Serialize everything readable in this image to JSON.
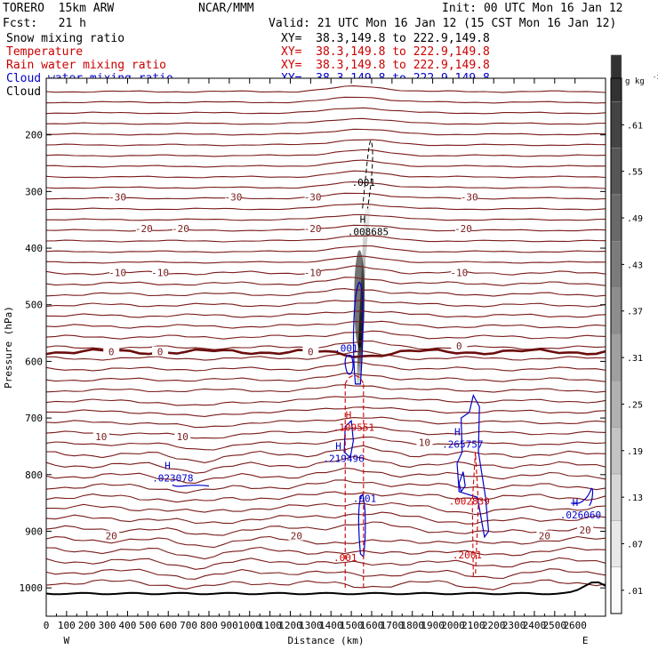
{
  "header": {
    "model": "TORERO  15km ARW",
    "center": "NCAR/MMM",
    "init": "Init: 00 UTC Mon 16 Jan 12",
    "fcst": "Fcst:   21 h",
    "valid": "Valid: 21 UTC Mon 16 Jan 12 (15 CST Mon 16 Jan 12)"
  },
  "fields": [
    {
      "name": "Snow mixing ratio",
      "xy": "XY=  38.3,149.8 to 222.9,149.8",
      "color": "#000000",
      "xy_color": "#000000"
    },
    {
      "name": "Temperature",
      "xy": "XY=  38.3,149.8 to 222.9,149.8",
      "color": "#cc0000",
      "xy_color": "#cc0000"
    },
    {
      "name": "Rain water mixing ratio",
      "xy": "XY=  38.3,149.8 to 222.9,149.8",
      "color": "#cc0000",
      "xy_color": "#cc0000"
    },
    {
      "name": "Cloud water mixing ratio",
      "xy": "XY=  38.3,149.8 to 222.9,149.8",
      "color": "#0000cc",
      "xy_color": "#0000cc"
    },
    {
      "name": "Cloud ice mixing ratio",
      "xy": "XY=  38.3,149.8 to 222.9,149.8",
      "color": "#000000",
      "xy_color": "#000000"
    }
  ],
  "chart_data": {
    "type": "contour cross-section",
    "xlabel": "Distance (km)",
    "ylabel": "Pressure (hPa)",
    "xlim": [
      0,
      2750
    ],
    "ylim": [
      1050,
      100
    ],
    "x_ticks": [
      0,
      100,
      200,
      300,
      400,
      500,
      600,
      700,
      800,
      900,
      1000,
      1100,
      1200,
      1300,
      1400,
      1500,
      1600,
      1700,
      1800,
      1900,
      2000,
      2100,
      2200,
      2300,
      2400,
      2500,
      2600
    ],
    "y_ticks": [
      200,
      300,
      400,
      500,
      600,
      700,
      800,
      900,
      1000
    ],
    "x_end_labels": {
      "left": "W",
      "right": "E"
    },
    "colorbar": {
      "unit": "g kg",
      "unit_exponent": "-1",
      "ticks": [
        ".01",
        ".07",
        ".13",
        ".19",
        ".25",
        ".31",
        ".37",
        ".43",
        ".49",
        ".55",
        ".61"
      ]
    },
    "temperature_contour_labels": [
      {
        "value": "-30",
        "x": [
          350,
          920,
          1310,
          2080
        ],
        "p": [
          310,
          310,
          310,
          310
        ]
      },
      {
        "value": "-20",
        "x": [
          480,
          660,
          1310,
          2050
        ],
        "p": [
          365,
          365,
          365,
          365
        ]
      },
      {
        "value": "-10",
        "x": [
          350,
          560,
          1310,
          2030
        ],
        "p": [
          443,
          443,
          443,
          443
        ]
      },
      {
        "value": "0",
        "x": [
          320,
          560,
          1300,
          2030
        ],
        "p": [
          583,
          583,
          583,
          573
        ]
      },
      {
        "value": "10",
        "x": [
          270,
          670,
          1860
        ],
        "p": [
          733,
          733,
          743
        ]
      },
      {
        "value": "20",
        "x": [
          320,
          1230,
          2450,
          2650
        ],
        "p": [
          908,
          908,
          908,
          898
        ]
      }
    ],
    "maxima": [
      {
        "label": "H",
        "value": ".008685",
        "x": 1565,
        "p": 368,
        "color": "#000000"
      },
      {
        "label": "H",
        "value": ".109551",
        "x": 1495,
        "p": 713,
        "color": "#cc0000"
      },
      {
        "label": "H",
        "value": ".219496",
        "x": 1445,
        "p": 768,
        "color": "#0000cc"
      },
      {
        "label": "H",
        "value": ".023078",
        "x": 605,
        "p": 803,
        "color": "#0000cc"
      },
      {
        "label": "H",
        "value": ".265757",
        "x": 2030,
        "p": 743,
        "color": "#0000cc"
      },
      {
        "label": "H",
        "value": ".026060",
        "x": 2610,
        "p": 868,
        "color": "#0000cc"
      }
    ],
    "contour_value_labels": [
      {
        "value": ".001",
        "x": 1560,
        "p": 290,
        "color": "#000000"
      },
      {
        "value": ".001",
        "x": 1475,
        "p": 583,
        "color": "#0000cc"
      },
      {
        "value": ".001",
        "x": 1565,
        "p": 848,
        "color": "#0000cc"
      },
      {
        "value": ".001",
        "x": 1470,
        "p": 953,
        "color": "#cc0000"
      },
      {
        "value": ".002839",
        "x": 2080,
        "p": 853,
        "color": "#cc0000"
      },
      {
        "value": ".2001",
        "x": 2070,
        "p": 948,
        "color": "#cc0000"
      }
    ]
  }
}
